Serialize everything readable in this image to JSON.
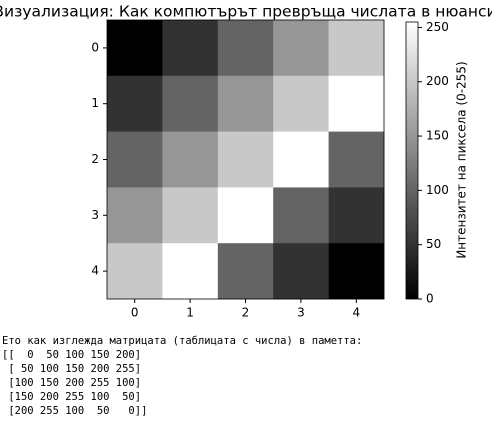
{
  "chart_data": {
    "type": "heatmap",
    "title": "Визуализация: Как компютърът превръща числата в нюанси",
    "values": [
      [
        0,
        50,
        100,
        150,
        200
      ],
      [
        50,
        100,
        150,
        200,
        255
      ],
      [
        100,
        150,
        200,
        255,
        100
      ],
      [
        150,
        200,
        255,
        100,
        50
      ],
      [
        200,
        255,
        100,
        50,
        0
      ]
    ],
    "colormap": "gray",
    "xticks": [
      0,
      1,
      2,
      3,
      4
    ],
    "yticks": [
      0,
      1,
      2,
      3,
      4
    ],
    "colorbar_label": "Интензитет на пиксела (0-255)",
    "clim": [
      0,
      255
    ],
    "cticks": [
      0,
      50,
      100,
      150,
      200,
      250
    ]
  },
  "output": {
    "caption": "Ето как изглежда матрицата (таблицата с числа) в паметта:",
    "lines": [
      "[[  0  50 100 150 200]",
      " [ 50 100 150 200 255]",
      " [100 150 200 255 100]",
      " [150 200 255 100  50]",
      " [200 255 100  50   0]]"
    ]
  }
}
